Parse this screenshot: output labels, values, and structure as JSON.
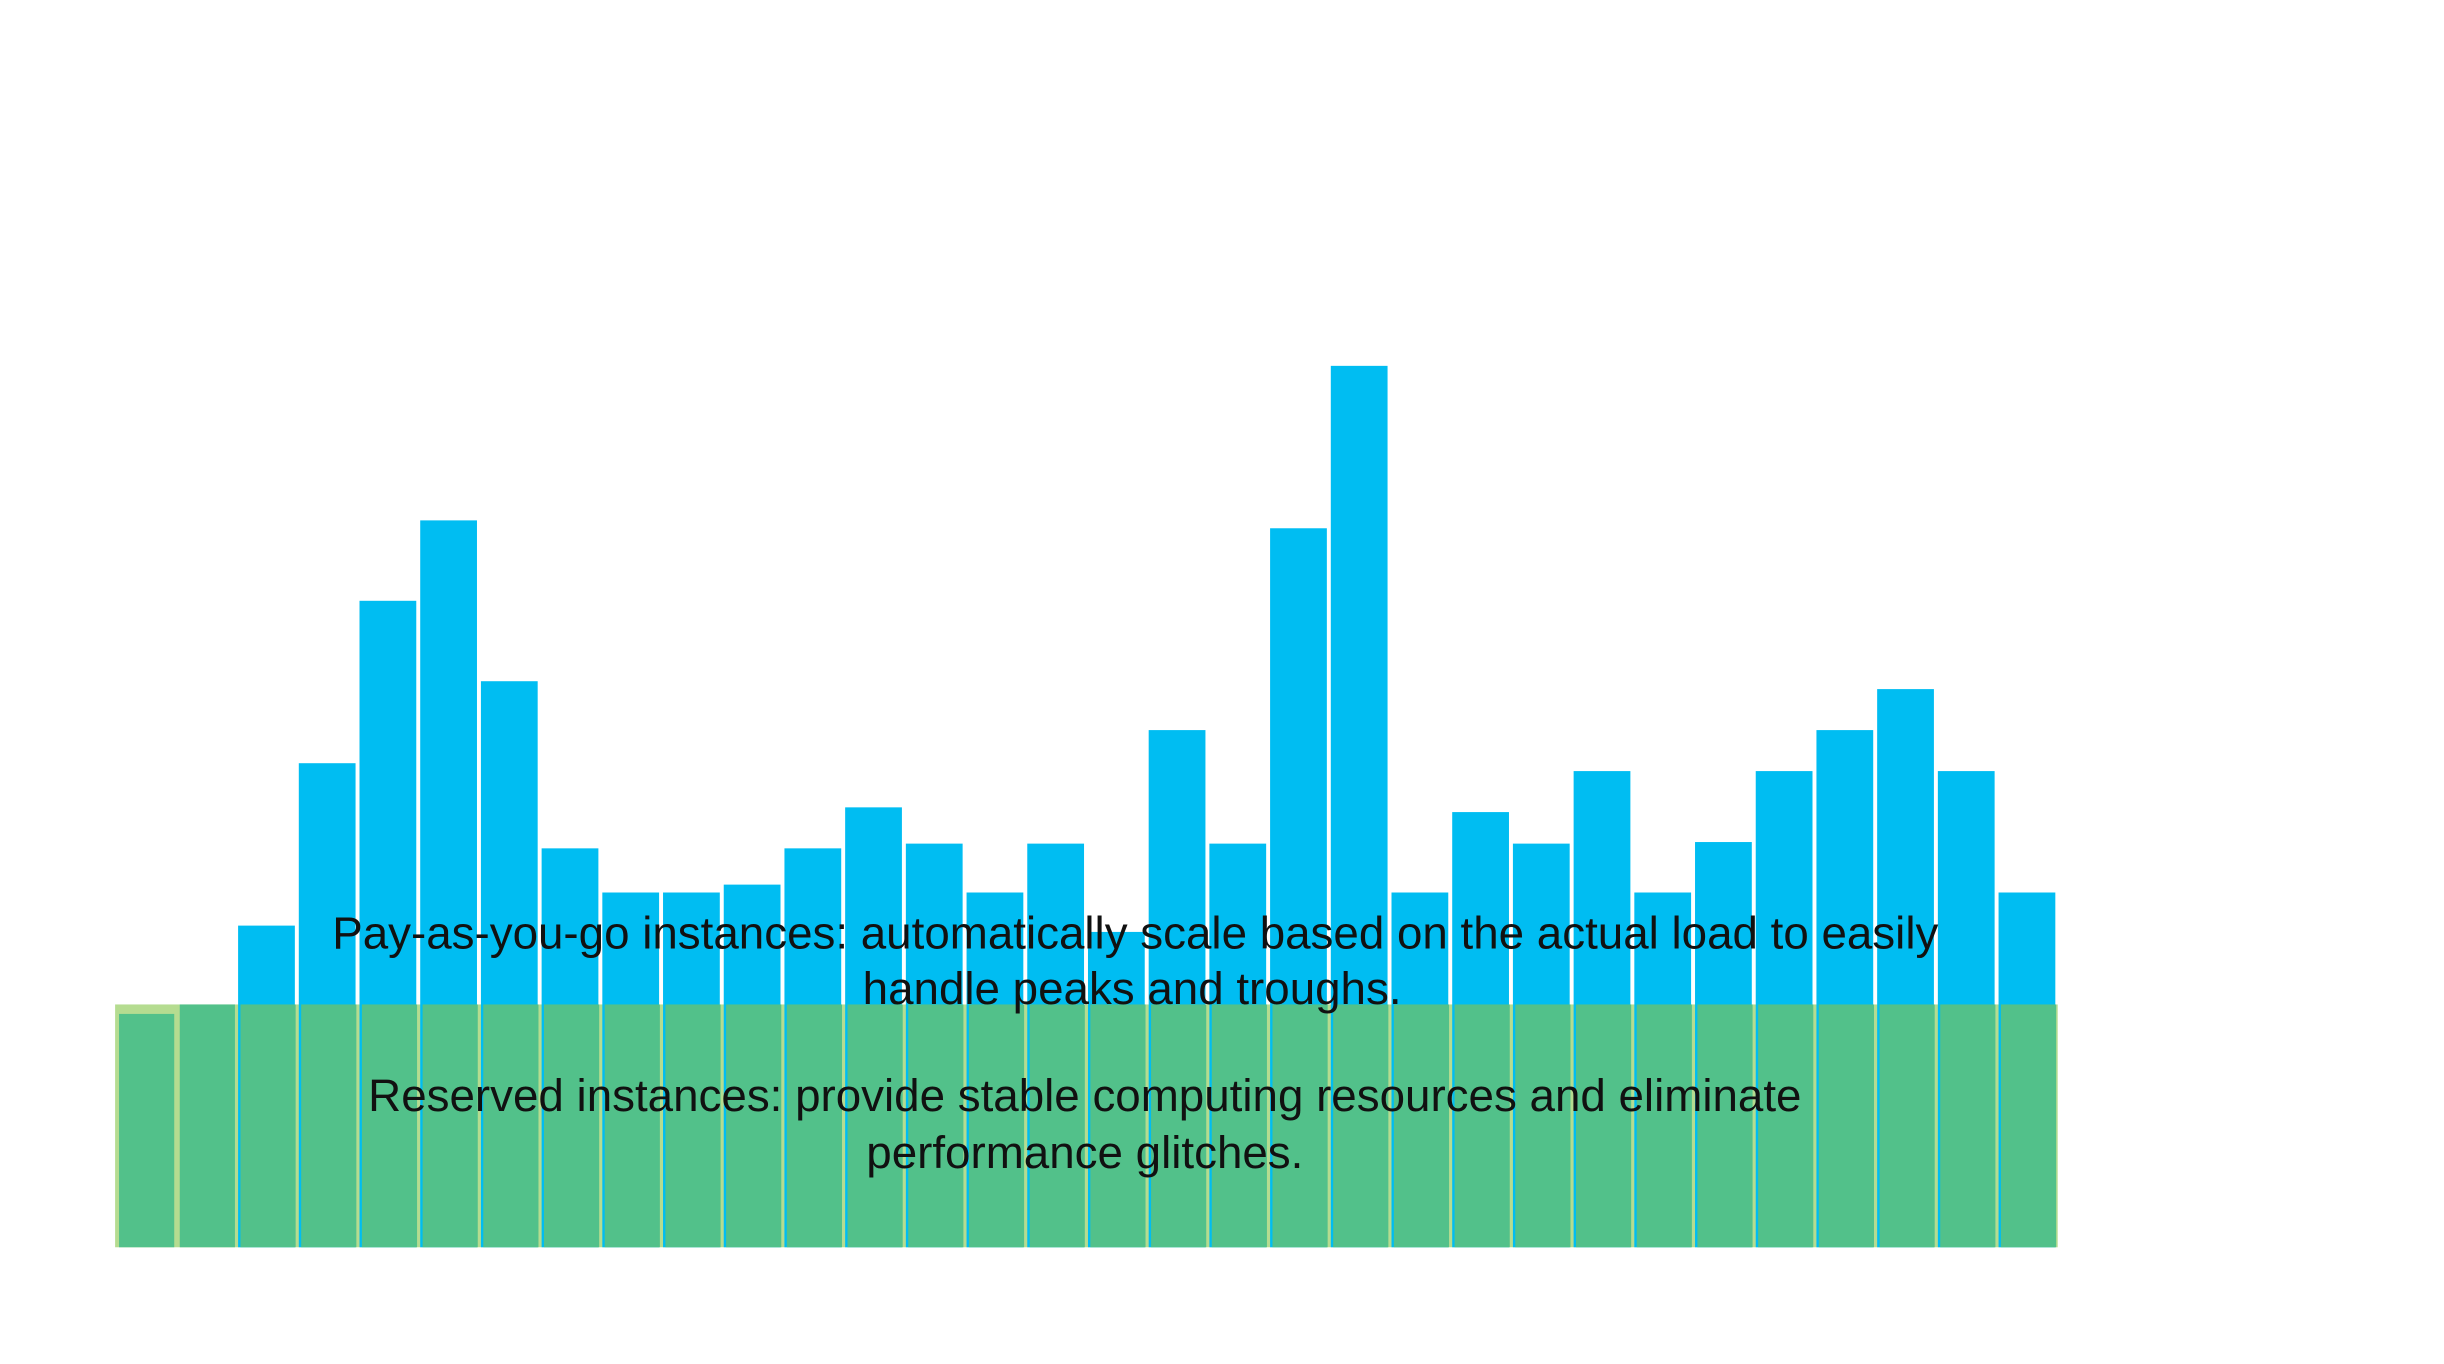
{
  "chart_data": {
    "type": "bar",
    "categories": [
      null,
      null,
      null,
      null,
      null,
      null,
      null,
      null,
      null,
      null,
      null,
      null,
      null,
      null,
      null,
      null,
      null,
      null,
      null,
      null,
      null,
      null,
      null,
      null,
      null,
      null,
      null,
      null,
      null,
      null,
      null,
      null
    ],
    "series": [
      {
        "name": "Pay-as-you-go instances",
        "color": "#00bdf2",
        "values": [
          null,
          null,
          204,
          307,
          410,
          461,
          359,
          253,
          225,
          225,
          230,
          253,
          279,
          256,
          225,
          256,
          200,
          328,
          256,
          456,
          559,
          225,
          276,
          256,
          302,
          225,
          257,
          302,
          328,
          354,
          302,
          225
        ]
      },
      {
        "name": "Reserved instances",
        "color": "#52c18a",
        "values": [
          148,
          154,
          154,
          154,
          154,
          154,
          154,
          154,
          154,
          154,
          154,
          154,
          154,
          154,
          154,
          154,
          154,
          154,
          154,
          154,
          154,
          154,
          154,
          154,
          154,
          154,
          154,
          154,
          154,
          154,
          154,
          154
        ]
      }
    ],
    "ylim": [
      0,
      600
    ],
    "annotations": [
      [
        "Pay-as-you-go instances: automatically scale based on the actual load to easily",
        "handle peaks and troughs."
      ],
      [
        "Reserved instances: provide stable computing resources and eliminate",
        "performance glitches."
      ]
    ]
  }
}
